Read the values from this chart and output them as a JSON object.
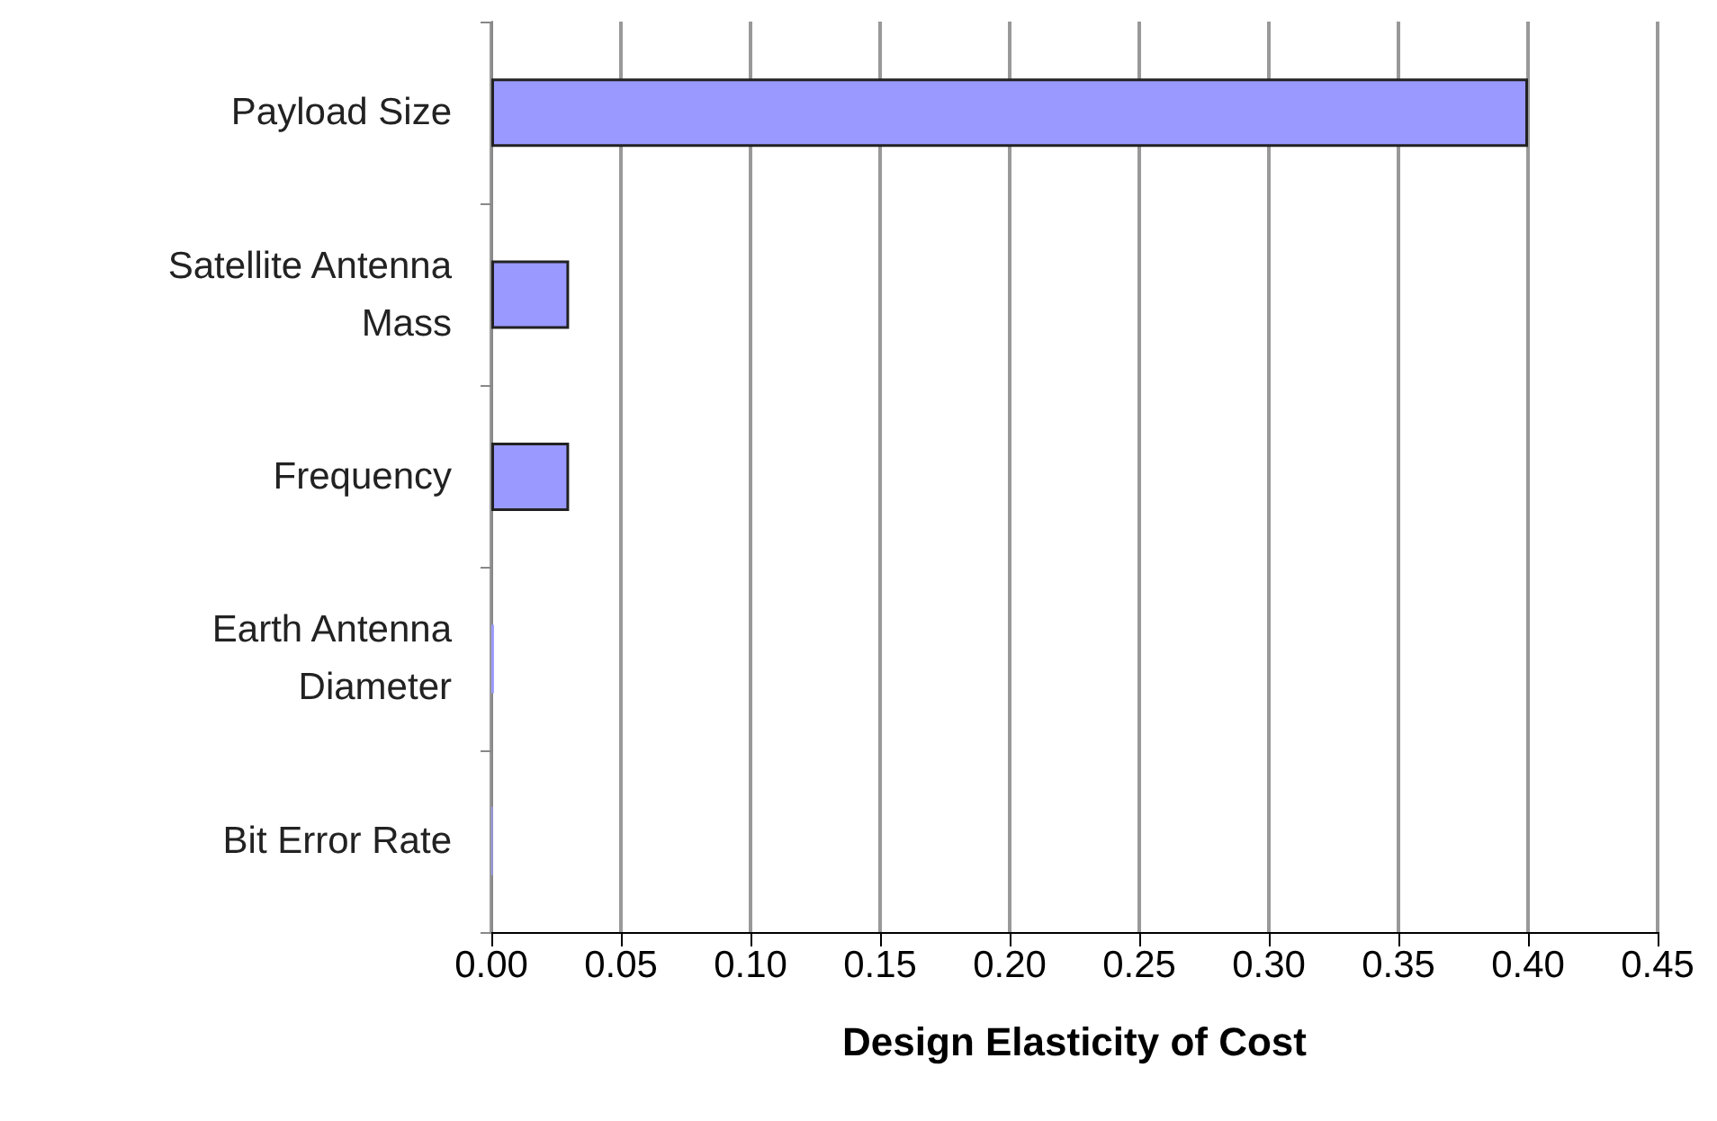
{
  "chart_data": {
    "type": "bar",
    "orientation": "horizontal",
    "xlabel": "Design Elasticity of Cost",
    "categories": [
      "Payload Size",
      "Satellite Antenna\nMass",
      "Frequency",
      "Earth Antenna\nDiameter",
      "Bit Error Rate"
    ],
    "values": [
      0.4,
      0.03,
      0.03,
      0.001,
      0.0005
    ],
    "color": "#9999ff",
    "xlim": [
      0,
      0.45
    ],
    "xticks": [
      {
        "value": 0,
        "label": "0.00"
      },
      {
        "value": 0.05,
        "label": "0.05"
      },
      {
        "value": 0.1,
        "label": "0.10"
      },
      {
        "value": 0.15,
        "label": "0.15"
      },
      {
        "value": 0.2,
        "label": "0.20"
      },
      {
        "value": 0.25,
        "label": "0.25"
      },
      {
        "value": 0.3,
        "label": "0.30"
      },
      {
        "value": 0.35,
        "label": "0.35"
      },
      {
        "value": 0.4,
        "label": "0.40"
      },
      {
        "value": 0.45,
        "label": "0.45"
      }
    ],
    "grid": "x"
  }
}
